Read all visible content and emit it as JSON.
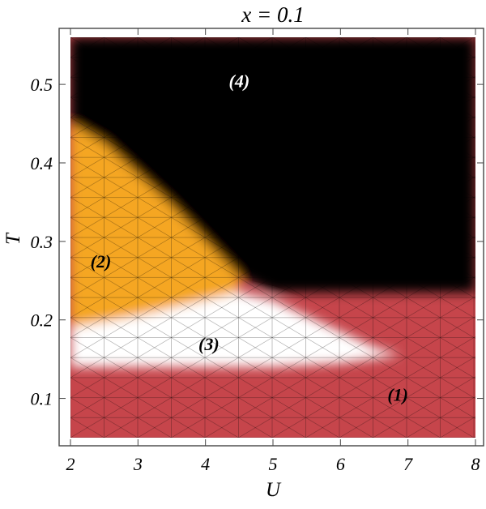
{
  "chart_data": {
    "type": "heatmap",
    "title": "x = 0.1",
    "xlabel": "U",
    "ylabel": "T",
    "xlim": [
      2,
      8
    ],
    "ylim": [
      0.05,
      0.56
    ],
    "xticks": [
      "2",
      "3",
      "4",
      "5",
      "6",
      "7",
      "8"
    ],
    "yticks": [
      "0.1",
      "0.2",
      "0.3",
      "0.4",
      "0.5"
    ],
    "grid": false,
    "colors": {
      "1": "#c6454b",
      "2": "#f5a623",
      "3": "#ffffff",
      "4": "#000000"
    },
    "regions": [
      {
        "label": "(1)",
        "U": 6.85,
        "T": 0.105,
        "color": "#000000"
      },
      {
        "label": "(2)",
        "U": 2.45,
        "T": 0.275,
        "color": "#000000"
      },
      {
        "label": "(3)",
        "U": 4.05,
        "T": 0.17,
        "color": "#000000"
      },
      {
        "label": "(4)",
        "U": 4.5,
        "T": 0.505,
        "color": "#ffffff"
      }
    ],
    "phase_boundaries": {
      "region4_lower_T": [
        {
          "U": 2.0,
          "T": 0.45
        },
        {
          "U": 2.5,
          "T": 0.425
        },
        {
          "U": 3.0,
          "T": 0.385
        },
        {
          "U": 3.5,
          "T": 0.345
        },
        {
          "U": 4.0,
          "T": 0.3
        },
        {
          "U": 4.5,
          "T": 0.255
        },
        {
          "U": 5.0,
          "T": 0.235
        },
        {
          "U": 8.0,
          "T": 0.235
        }
      ],
      "region3_upper_T": [
        {
          "U": 2.0,
          "T": 0.19
        },
        {
          "U": 3.0,
          "T": 0.205
        },
        {
          "U": 4.0,
          "T": 0.225
        },
        {
          "U": 4.5,
          "T": 0.235
        },
        {
          "U": 5.0,
          "T": 0.225
        },
        {
          "U": 5.5,
          "T": 0.205
        },
        {
          "U": 6.0,
          "T": 0.185
        },
        {
          "U": 6.5,
          "T": 0.165
        },
        {
          "U": 6.9,
          "T": 0.155
        }
      ],
      "region3_lower_T": [
        {
          "U": 2.0,
          "T": 0.14
        },
        {
          "U": 3.0,
          "T": 0.14
        },
        {
          "U": 4.0,
          "T": 0.14
        },
        {
          "U": 5.0,
          "T": 0.14
        },
        {
          "U": 6.0,
          "T": 0.145
        },
        {
          "U": 6.9,
          "T": 0.155
        }
      ]
    }
  }
}
